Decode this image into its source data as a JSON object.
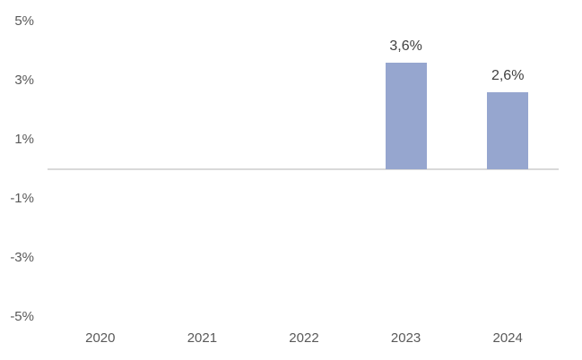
{
  "chart_data": {
    "type": "bar",
    "categories": [
      "2020",
      "2021",
      "2022",
      "2023",
      "2024"
    ],
    "values": [
      0,
      0,
      0,
      3.6,
      2.6
    ],
    "data_labels": [
      "",
      "",
      "",
      "3,6%",
      "2,6%"
    ],
    "y_ticks": [
      {
        "label": "5%",
        "value": 5
      },
      {
        "label": "3%",
        "value": 3
      },
      {
        "label": "1%",
        "value": 1
      },
      {
        "label": "-1%",
        "value": -1
      },
      {
        "label": "-3%",
        "value": -3
      },
      {
        "label": "-5%",
        "value": -5
      }
    ],
    "ylim": [
      -5,
      5
    ],
    "grid": false,
    "legend_visible": false,
    "colors": {
      "bar": "#96A6CF",
      "axis_line": "#D9D9D9",
      "tick_text": "#595959",
      "data_label_text": "#404040",
      "background": "#FFFFFF"
    }
  }
}
